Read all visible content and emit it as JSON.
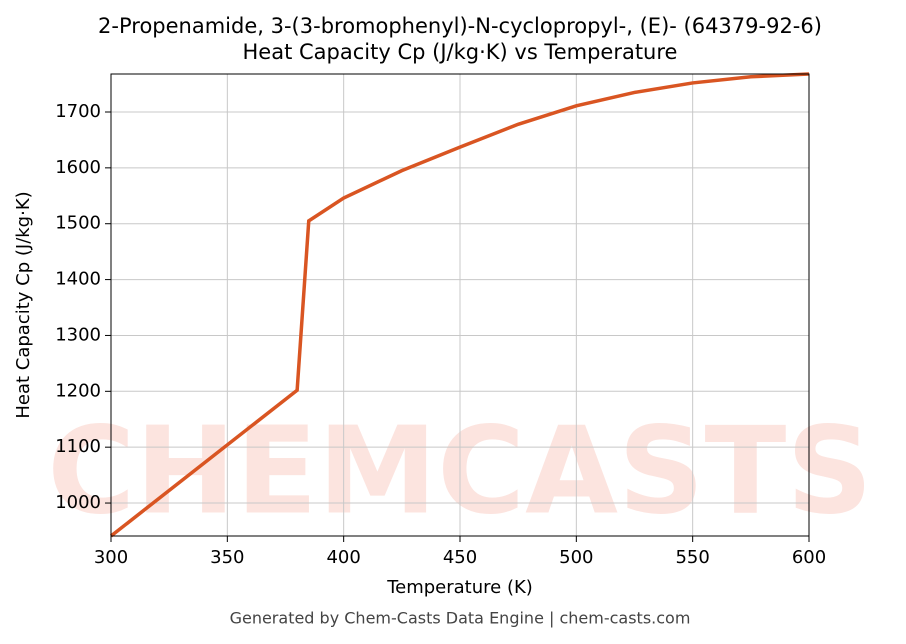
{
  "chart_data": {
    "type": "line",
    "title": "2-Propenamide, 3-(3-bromophenyl)-N-cyclopropyl-, (E)- (64379-92-6)",
    "subtitle": "Heat Capacity Cp (J/kg·K) vs Temperature",
    "xlabel": "Temperature (K)",
    "ylabel": "Heat Capacity Cp (J/kg·K)",
    "footer": "Generated by Chem-Casts Data Engine | chem-casts.com",
    "watermark": "CHEMCASTS",
    "x": [
      300,
      380,
      385,
      400,
      425,
      450,
      475,
      500,
      525,
      550,
      575,
      600
    ],
    "series": [
      {
        "name": "Heat Capacity Cp",
        "color": "#d95522",
        "values": [
          941,
          1202,
          1505,
          1546,
          1595,
          1637,
          1678,
          1711,
          1735,
          1752,
          1763,
          1768
        ]
      }
    ],
    "xlim": [
      300,
      600
    ],
    "xticks": [
      300,
      350,
      400,
      450,
      500,
      550,
      600
    ],
    "ylim": [
      941,
      1768
    ],
    "yticks": [
      1000,
      1100,
      1200,
      1300,
      1400,
      1500,
      1600,
      1700
    ],
    "grid": true
  }
}
